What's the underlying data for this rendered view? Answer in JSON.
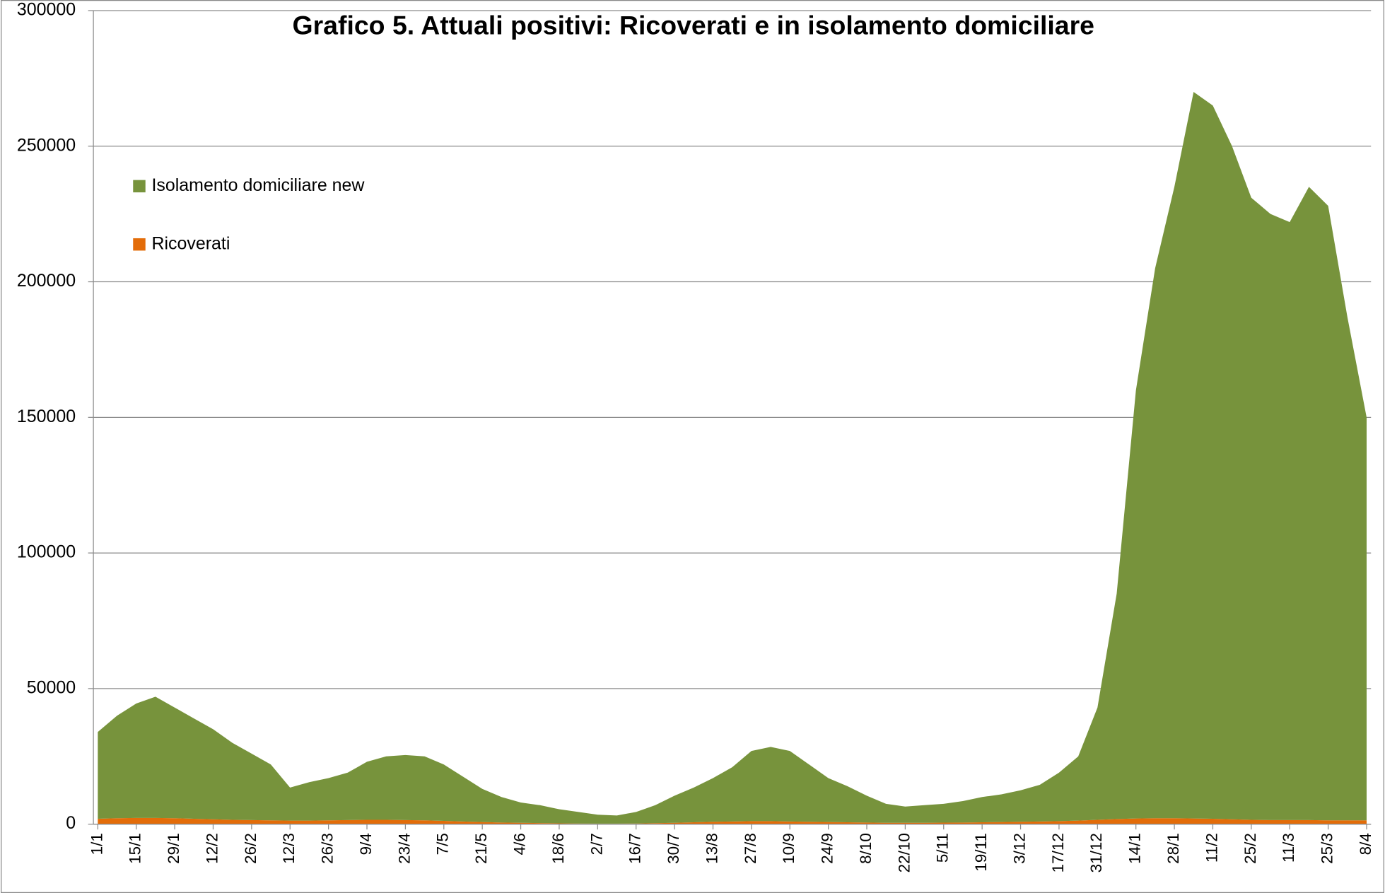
{
  "chart_data": {
    "type": "stacked_area",
    "title": "Grafico 5. Attuali positivi: Ricoverati e in isolamento domiciliare",
    "categories": [
      "1/1",
      null,
      "15/1",
      null,
      "29/1",
      null,
      "12/2",
      null,
      "26/2",
      null,
      "12/3",
      null,
      "26/3",
      null,
      "9/4",
      null,
      "23/4",
      null,
      "7/5",
      null,
      "21/5",
      null,
      "4/6",
      null,
      "18/6",
      null,
      "2/7",
      null,
      "16/7",
      null,
      "30/7",
      null,
      "13/8",
      null,
      "27/8",
      null,
      "10/9",
      null,
      "24/9",
      null,
      "8/10",
      null,
      "22/10",
      null,
      "5/11",
      null,
      "19/11",
      null,
      "3/12",
      null,
      "17/12",
      null,
      "31/12",
      null,
      "14/1",
      null,
      "28/1",
      null,
      "11/2",
      null,
      "25/2",
      null,
      "11/3",
      null,
      "25/3",
      null,
      "8/4"
    ],
    "series": [
      {
        "name": "Ricoverati",
        "color": "#e36c09",
        "values": [
          2000,
          2200,
          2300,
          2300,
          2200,
          2000,
          1800,
          1600,
          1500,
          1400,
          1300,
          1300,
          1400,
          1500,
          1600,
          1600,
          1500,
          1400,
          1200,
          1000,
          800,
          600,
          500,
          400,
          300,
          250,
          200,
          200,
          250,
          350,
          500,
          700,
          900,
          1000,
          1100,
          1100,
          1000,
          900,
          800,
          700,
          600,
          500,
          500,
          500,
          550,
          600,
          700,
          800,
          900,
          1000,
          1100,
          1300,
          1600,
          1900,
          2100,
          2200,
          2200,
          2100,
          2000,
          1800,
          1600,
          1500,
          1500,
          1500,
          1400,
          1400,
          1400
        ]
      },
      {
        "name": "Isolamento domiciliare new",
        "color": "#77933c",
        "values": [
          32000,
          37800,
          42200,
          44700,
          40800,
          37000,
          33200,
          28400,
          24500,
          20600,
          12200,
          14200,
          15600,
          17500,
          21400,
          23400,
          24000,
          23600,
          20800,
          16500,
          12200,
          9400,
          7500,
          6600,
          5200,
          4250,
          3300,
          3000,
          4250,
          6650,
          10000,
          12800,
          16100,
          20000,
          25900,
          27400,
          26000,
          21100,
          16200,
          13300,
          9900,
          7000,
          6000,
          6500,
          6950,
          7900,
          9300,
          10200,
          11600,
          13500,
          17900,
          23700,
          41400,
          83100,
          157900,
          202800,
          232800,
          267900,
          263000,
          248200,
          229400,
          223500,
          220500,
          233500,
          226600,
          185600,
          148600
        ]
      }
    ],
    "ylim": [
      0,
      300000
    ],
    "yticks": [
      0,
      50000,
      100000,
      150000,
      200000,
      250000,
      300000
    ],
    "grid": true,
    "legend": "upper left"
  }
}
